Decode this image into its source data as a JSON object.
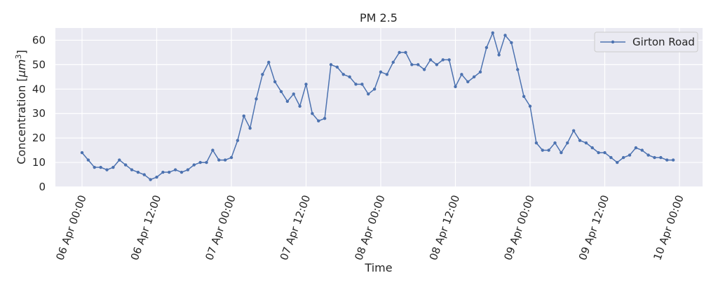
{
  "chart_data": {
    "type": "line",
    "title": "PM 2.5",
    "xlabel": "Time",
    "ylabel_main": "Concentration [",
    "ylabel_unit": "μm",
    "ylabel_sup": "3",
    "ylabel_end": "]",
    "ylim": [
      0,
      65
    ],
    "yticks": [
      0,
      10,
      20,
      30,
      40,
      50,
      60
    ],
    "x_start": "06 Apr 00:00",
    "x_step_minutes": 60,
    "xticks": [
      "06 Apr 00:00",
      "06 Apr 12:00",
      "07 Apr 00:00",
      "07 Apr 12:00",
      "08 Apr 00:00",
      "08 Apr 12:00",
      "09 Apr 00:00",
      "09 Apr 12:00",
      "10 Apr 00:00"
    ],
    "grid": true,
    "legend_position": "top-right",
    "series": [
      {
        "name": "Girton Road",
        "color": "#4c72b0",
        "values": [
          14,
          11,
          8,
          8,
          7,
          8,
          11,
          9,
          7,
          6,
          5,
          3,
          4,
          6,
          6,
          7,
          6,
          7,
          9,
          10,
          10,
          15,
          11,
          11,
          12,
          19,
          29,
          24,
          36,
          46,
          51,
          43,
          39,
          35,
          38,
          33,
          42,
          30,
          27,
          28,
          50,
          49,
          46,
          45,
          42,
          42,
          38,
          40,
          47,
          46,
          51,
          55,
          55,
          50,
          50,
          48,
          52,
          50,
          52,
          52,
          41,
          46,
          43,
          45,
          47,
          57,
          63,
          54,
          62,
          59,
          48,
          37,
          33,
          18,
          15,
          15,
          18,
          14,
          18,
          23,
          19,
          18,
          16,
          14,
          14,
          12,
          10,
          12,
          13,
          16,
          15,
          13,
          12,
          12,
          11,
          11
        ]
      }
    ]
  }
}
